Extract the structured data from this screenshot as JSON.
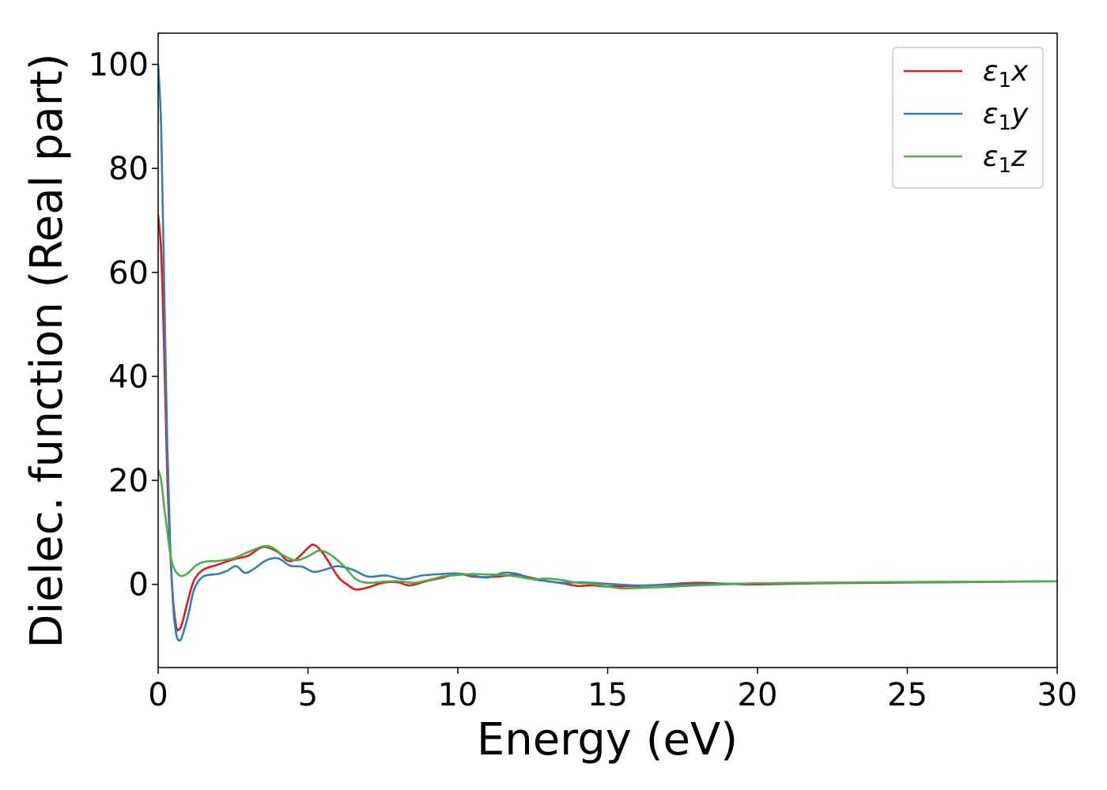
{
  "chart_data": {
    "type": "line",
    "title": "",
    "xlabel": "Energy (eV)",
    "ylabel": "Dielec. function (Real part)",
    "xlim": [
      0,
      30
    ],
    "ylim": [
      -16,
      106
    ],
    "xticks": [
      0,
      5,
      10,
      15,
      20,
      25,
      30
    ],
    "yticks": [
      0,
      20,
      40,
      60,
      80,
      100
    ],
    "grid": false,
    "legend_position": "top-right",
    "series": [
      {
        "name": "ε1x",
        "legend_base": "ε",
        "legend_sub": "1",
        "legend_tail": "x",
        "color": "#e41a1c",
        "points": [
          [
            0,
            71
          ],
          [
            0.1,
            64
          ],
          [
            0.2,
            45
          ],
          [
            0.3,
            22
          ],
          [
            0.4,
            7
          ],
          [
            0.5,
            -3
          ],
          [
            0.6,
            -8
          ],
          [
            0.68,
            -8.8
          ],
          [
            0.8,
            -7.5
          ],
          [
            1.0,
            -3
          ],
          [
            1.2,
            0.8
          ],
          [
            1.5,
            2.8
          ],
          [
            2.0,
            3.8
          ],
          [
            2.5,
            4.8
          ],
          [
            3.0,
            5.5
          ],
          [
            3.5,
            7.2
          ],
          [
            4.0,
            6.2
          ],
          [
            4.3,
            4.6
          ],
          [
            4.6,
            4.8
          ],
          [
            5.0,
            7.0
          ],
          [
            5.2,
            7.6
          ],
          [
            5.5,
            6.0
          ],
          [
            6.0,
            1.5
          ],
          [
            6.3,
            0
          ],
          [
            6.6,
            -1.0
          ],
          [
            7.0,
            -0.6
          ],
          [
            7.5,
            0.3
          ],
          [
            8.0,
            0.4
          ],
          [
            8.4,
            -0.2
          ],
          [
            9.0,
            0.7
          ],
          [
            9.5,
            1.3
          ],
          [
            10.0,
            2.0
          ],
          [
            10.5,
            1.5
          ],
          [
            11.0,
            1.4
          ],
          [
            11.5,
            1.6
          ],
          [
            12.0,
            1.8
          ],
          [
            12.5,
            1.2
          ],
          [
            13.0,
            0.6
          ],
          [
            13.5,
            0.2
          ],
          [
            14.0,
            -0.3
          ],
          [
            14.5,
            -0.2
          ],
          [
            15.0,
            -0.4
          ],
          [
            16.0,
            -0.3
          ],
          [
            17.0,
            0.0
          ],
          [
            18.0,
            0.3
          ],
          [
            19.0,
            0.1
          ],
          [
            20.0,
            0.0
          ],
          [
            22.0,
            0.2
          ],
          [
            24.0,
            0.3
          ],
          [
            26.0,
            0.4
          ],
          [
            28.0,
            0.5
          ],
          [
            30.0,
            0.6
          ]
        ]
      },
      {
        "name": "ε1y",
        "legend_base": "ε",
        "legend_sub": "1",
        "legend_tail": "y",
        "color": "#377eb8",
        "points": [
          [
            0,
            100
          ],
          [
            0.1,
            88
          ],
          [
            0.2,
            58
          ],
          [
            0.3,
            28
          ],
          [
            0.4,
            8
          ],
          [
            0.5,
            -4
          ],
          [
            0.6,
            -9.5
          ],
          [
            0.7,
            -10.8
          ],
          [
            0.8,
            -10
          ],
          [
            1.0,
            -6
          ],
          [
            1.2,
            -1
          ],
          [
            1.5,
            1.5
          ],
          [
            2.0,
            2.0
          ],
          [
            2.3,
            2.6
          ],
          [
            2.6,
            3.5
          ],
          [
            2.9,
            2.2
          ],
          [
            3.2,
            3.0
          ],
          [
            3.6,
            4.6
          ],
          [
            4.0,
            5.0
          ],
          [
            4.4,
            3.6
          ],
          [
            4.8,
            3.4
          ],
          [
            5.2,
            2.4
          ],
          [
            5.6,
            2.9
          ],
          [
            6.0,
            3.5
          ],
          [
            6.5,
            2.8
          ],
          [
            7.0,
            1.5
          ],
          [
            7.6,
            1.7
          ],
          [
            8.2,
            1.0
          ],
          [
            8.8,
            1.7
          ],
          [
            9.5,
            2.0
          ],
          [
            10.0,
            2.1
          ],
          [
            10.5,
            1.7
          ],
          [
            11.0,
            1.3
          ],
          [
            11.5,
            2.2
          ],
          [
            12.0,
            2.0
          ],
          [
            12.5,
            1.0
          ],
          [
            13.0,
            0.6
          ],
          [
            13.5,
            0.3
          ],
          [
            14.0,
            0.4
          ],
          [
            14.5,
            0.3
          ],
          [
            15.0,
            0.1
          ],
          [
            16.0,
            -0.2
          ],
          [
            17.0,
            -0.1
          ],
          [
            18.0,
            0.0
          ],
          [
            19.0,
            0.1
          ],
          [
            20.0,
            0.2
          ],
          [
            22.0,
            0.3
          ],
          [
            24.0,
            0.4
          ],
          [
            26.0,
            0.4
          ],
          [
            28.0,
            0.5
          ],
          [
            30.0,
            0.6
          ]
        ]
      },
      {
        "name": "ε1z",
        "legend_base": "ε",
        "legend_sub": "1",
        "legend_tail": "z",
        "color": "#4daf4a",
        "points": [
          [
            0,
            22
          ],
          [
            0.1,
            20
          ],
          [
            0.2,
            15
          ],
          [
            0.3,
            10.5
          ],
          [
            0.4,
            6
          ],
          [
            0.5,
            3.5
          ],
          [
            0.65,
            2.0
          ],
          [
            0.8,
            1.6
          ],
          [
            1.0,
            2.2
          ],
          [
            1.3,
            3.8
          ],
          [
            1.6,
            4.4
          ],
          [
            2.0,
            4.5
          ],
          [
            2.5,
            5.0
          ],
          [
            3.0,
            6.2
          ],
          [
            3.5,
            7.3
          ],
          [
            3.8,
            7.1
          ],
          [
            4.2,
            5.5
          ],
          [
            4.6,
            4.6
          ],
          [
            5.0,
            5.4
          ],
          [
            5.4,
            6.5
          ],
          [
            5.8,
            5.5
          ],
          [
            6.2,
            3.5
          ],
          [
            6.6,
            1.0
          ],
          [
            7.0,
            0.3
          ],
          [
            7.5,
            0.5
          ],
          [
            8.0,
            0.6
          ],
          [
            8.5,
            0.3
          ],
          [
            9.0,
            0.8
          ],
          [
            9.5,
            1.5
          ],
          [
            10.0,
            1.8
          ],
          [
            10.5,
            2.0
          ],
          [
            11.0,
            1.9
          ],
          [
            11.5,
            1.8
          ],
          [
            12.0,
            1.5
          ],
          [
            12.5,
            1.0
          ],
          [
            13.0,
            1.1
          ],
          [
            13.5,
            0.8
          ],
          [
            14.0,
            0.3
          ],
          [
            14.5,
            0.1
          ],
          [
            15.0,
            -0.4
          ],
          [
            15.5,
            -0.8
          ],
          [
            16.0,
            -0.7
          ],
          [
            17.0,
            -0.5
          ],
          [
            18.0,
            -0.2
          ],
          [
            19.0,
            0.0
          ],
          [
            20.0,
            0.2
          ],
          [
            22.0,
            0.3
          ],
          [
            24.0,
            0.4
          ],
          [
            26.0,
            0.5
          ],
          [
            28.0,
            0.5
          ],
          [
            30.0,
            0.6
          ]
        ]
      }
    ]
  }
}
